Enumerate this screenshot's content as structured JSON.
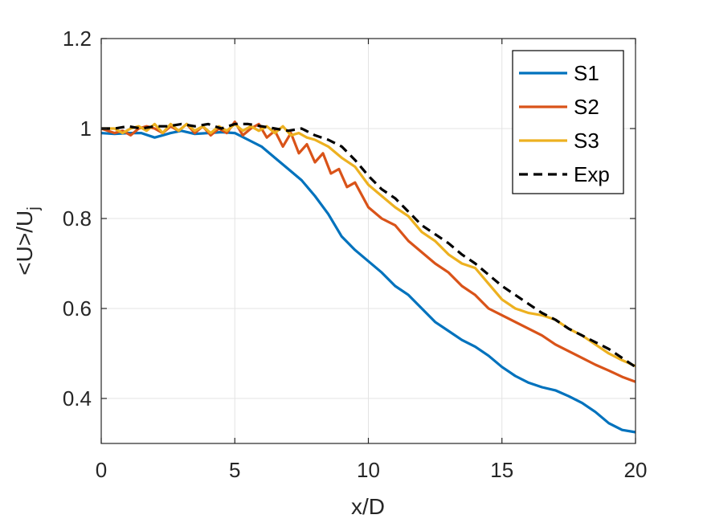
{
  "chart_data": {
    "type": "line",
    "title": "",
    "xlabel": "x/D",
    "ylabel_main": "<U>/U",
    "ylabel_sub": "j",
    "xlim": [
      0,
      20
    ],
    "ylim": [
      0.3,
      1.2
    ],
    "xticks": [
      "0",
      "5",
      "10",
      "15",
      "20"
    ],
    "yticks": [
      "0.4",
      "0.6",
      "0.8",
      "1",
      "1.2"
    ],
    "grid": true,
    "legend_position": "top-right",
    "series": [
      {
        "name": "S1",
        "color": "#0072BD",
        "style": "solid",
        "x": [
          0,
          0.5,
          1,
          1.5,
          2,
          2.3,
          2.6,
          3,
          3.5,
          4,
          4.5,
          5,
          5.5,
          6,
          6.5,
          7,
          7.5,
          8,
          8.5,
          9,
          9.5,
          10,
          10.5,
          11,
          11.5,
          12,
          12.5,
          13,
          13.5,
          14,
          14.5,
          15,
          15.5,
          16,
          16.5,
          17,
          17.5,
          18,
          18.5,
          19,
          19.5,
          20
        ],
        "y": [
          0.99,
          0.988,
          0.99,
          0.99,
          0.98,
          0.985,
          0.99,
          0.995,
          0.988,
          0.99,
          0.992,
          0.99,
          0.975,
          0.96,
          0.935,
          0.91,
          0.885,
          0.85,
          0.81,
          0.76,
          0.73,
          0.705,
          0.68,
          0.65,
          0.63,
          0.6,
          0.57,
          0.55,
          0.53,
          0.515,
          0.495,
          0.47,
          0.45,
          0.435,
          0.425,
          0.418,
          0.405,
          0.39,
          0.37,
          0.345,
          0.33,
          0.325
        ]
      },
      {
        "name": "S2",
        "color": "#D95319",
        "style": "solid",
        "x": [
          0,
          0.5,
          0.8,
          1.1,
          1.4,
          1.7,
          2,
          2.3,
          2.6,
          2.9,
          3.2,
          3.5,
          3.8,
          4.1,
          4.4,
          4.7,
          5,
          5.3,
          5.6,
          5.9,
          6.2,
          6.5,
          6.8,
          7.1,
          7.4,
          7.7,
          8,
          8.3,
          8.6,
          8.9,
          9.2,
          9.5,
          10,
          10.5,
          11,
          11.5,
          12,
          12.5,
          13,
          13.5,
          14,
          14.5,
          15,
          15.5,
          16,
          16.5,
          17,
          17.5,
          18,
          18.5,
          19,
          19.5,
          20
        ],
        "y": [
          1.0,
          0.99,
          0.995,
          0.985,
          1.0,
          1.005,
          1.0,
          0.99,
          1.005,
          0.995,
          1.01,
          0.99,
          1.005,
          0.985,
          1.0,
          0.99,
          1.015,
          0.985,
          1.0,
          1.01,
          0.98,
          0.995,
          0.96,
          0.99,
          0.945,
          0.965,
          0.925,
          0.945,
          0.9,
          0.91,
          0.87,
          0.88,
          0.825,
          0.8,
          0.785,
          0.75,
          0.725,
          0.7,
          0.68,
          0.65,
          0.63,
          0.6,
          0.585,
          0.57,
          0.555,
          0.54,
          0.52,
          0.505,
          0.49,
          0.475,
          0.462,
          0.448,
          0.437
        ]
      },
      {
        "name": "S3",
        "color": "#EDB120",
        "style": "solid",
        "x": [
          0,
          0.5,
          0.8,
          1.1,
          1.4,
          1.7,
          2,
          2.3,
          2.6,
          2.9,
          3.2,
          3.5,
          3.8,
          4.1,
          4.4,
          4.7,
          5,
          5.3,
          5.6,
          5.9,
          6.2,
          6.5,
          6.8,
          7.1,
          7.4,
          7.7,
          8,
          8.5,
          9,
          9.5,
          10,
          10.5,
          11,
          11.5,
          12,
          12.5,
          13,
          13.5,
          14,
          14.5,
          15,
          15.5,
          16,
          16.5,
          17,
          17.5,
          18,
          18.5,
          19,
          19.5,
          20
        ],
        "y": [
          1.0,
          1.0,
          0.99,
          1.0,
          1.005,
          0.995,
          1.01,
          0.99,
          1.01,
          0.995,
          1.01,
          0.995,
          1.005,
          0.99,
          1.005,
          0.995,
          1.01,
          0.995,
          1.005,
          0.995,
          1.005,
          0.99,
          1.005,
          0.985,
          0.99,
          0.98,
          0.975,
          0.96,
          0.935,
          0.915,
          0.875,
          0.85,
          0.825,
          0.805,
          0.77,
          0.75,
          0.72,
          0.7,
          0.69,
          0.655,
          0.62,
          0.6,
          0.59,
          0.585,
          0.575,
          0.555,
          0.54,
          0.52,
          0.5,
          0.485,
          0.472
        ]
      },
      {
        "name": "Exp",
        "color": "#000000",
        "style": "dashed",
        "x": [
          0,
          0.5,
          1,
          1.5,
          2,
          2.5,
          3,
          3.5,
          4,
          4.5,
          5,
          5.5,
          6,
          6.5,
          7,
          7.5,
          8,
          8.5,
          9,
          9.5,
          10,
          10.5,
          11,
          11.5,
          12,
          12.5,
          13,
          13.5,
          14,
          14.5,
          15,
          15.5,
          16,
          16.5,
          17,
          17.5,
          18,
          18.5,
          19,
          19.5,
          20
        ],
        "y": [
          1.0,
          1.0,
          1.005,
          1.0,
          1.005,
          1.005,
          1.01,
          1.005,
          1.01,
          1.0,
          1.01,
          1.01,
          1.005,
          1.0,
          0.995,
          1.0,
          0.985,
          0.975,
          0.96,
          0.93,
          0.895,
          0.865,
          0.845,
          0.815,
          0.785,
          0.765,
          0.745,
          0.72,
          0.7,
          0.675,
          0.65,
          0.63,
          0.61,
          0.59,
          0.575,
          0.555,
          0.54,
          0.525,
          0.51,
          0.49,
          0.47
        ]
      }
    ]
  }
}
